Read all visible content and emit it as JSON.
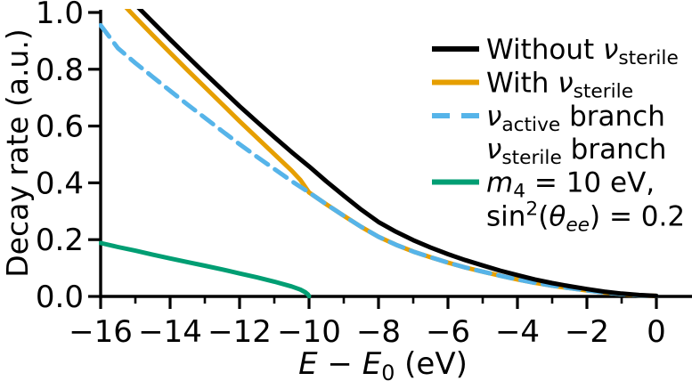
{
  "figure": {
    "background": "#ffffff",
    "text_color": "#000000"
  },
  "axis": {
    "ylabel": "Decay rate (a.u.)",
    "xlabel_parts": [
      {
        "t": "i",
        "v": "E"
      },
      {
        "t": "r",
        "v": " − "
      },
      {
        "t": "i",
        "v": "E"
      },
      {
        "t": "sub",
        "v": "0"
      },
      {
        "t": "r",
        "v": " (eV)"
      }
    ],
    "xtick_labels": [
      "−16",
      "−14",
      "−12",
      "−10",
      "−8",
      "−6",
      "−4",
      "−2",
      "0"
    ],
    "ytick_labels": [
      "0.0",
      "0.2",
      "0.4",
      "0.6",
      "0.8",
      "1.0"
    ]
  },
  "legend": {
    "items": [
      {
        "swatch": "solid",
        "color": "#000000",
        "parts": [
          {
            "t": "r",
            "v": "Without "
          },
          {
            "t": "i",
            "v": "ν"
          },
          {
            "t": "sub",
            "v": "sterile"
          }
        ]
      },
      {
        "swatch": "solid",
        "color": "#E69F00",
        "parts": [
          {
            "t": "r",
            "v": "With "
          },
          {
            "t": "i",
            "v": "ν"
          },
          {
            "t": "sub",
            "v": "sterile"
          }
        ]
      },
      {
        "swatch": "dashed",
        "color": "#56B4E9",
        "parts": [
          {
            "t": "i",
            "v": "ν"
          },
          {
            "t": "sub",
            "v": "active"
          },
          {
            "t": "r",
            "v": " branch"
          }
        ]
      },
      {
        "swatch": "none",
        "color": "",
        "parts": [
          {
            "t": "i",
            "v": "ν"
          },
          {
            "t": "sub",
            "v": "sterile"
          },
          {
            "t": "r",
            "v": " branch"
          }
        ]
      },
      {
        "swatch": "solid",
        "color": "#009E73",
        "parts": [
          {
            "t": "i",
            "v": "m"
          },
          {
            "t": "sub",
            "v": "4"
          },
          {
            "t": "r",
            "v": " = 10 eV,"
          }
        ]
      },
      {
        "swatch": "none",
        "color": "",
        "parts": [
          {
            "t": "r",
            "v": "sin"
          },
          {
            "t": "sup",
            "v": "2"
          },
          {
            "t": "r",
            "v": "("
          },
          {
            "t": "i",
            "v": "θ"
          },
          {
            "t": "isub",
            "v": "ee"
          },
          {
            "t": "r",
            "v": ") = 0.2"
          }
        ]
      }
    ]
  },
  "chart_data": {
    "type": "line",
    "title": "",
    "xlabel": "E − E0 (eV)",
    "ylabel": "Decay rate (a.u.)",
    "xlim": [
      -16,
      1.0
    ],
    "ylim": [
      0,
      1.0
    ],
    "grid": false,
    "legend_position": "upper right",
    "xticks_major": [
      -16,
      -14,
      -12,
      -10,
      -8,
      -6,
      -4,
      -2,
      0
    ],
    "xticks_minor": [
      -15,
      -13,
      -11,
      -9,
      -7,
      -5,
      -3,
      -1
    ],
    "yticks": [
      0.0,
      0.2,
      0.4,
      0.6,
      0.8,
      1.0
    ],
    "series": [
      {
        "name": "Without ν_sterile",
        "color": "#000000",
        "style": "solid",
        "x": [
          -16,
          -15.5,
          -15,
          -14.5,
          -14,
          -13.5,
          -13,
          -12.5,
          -12,
          -11.5,
          -11,
          -10.5,
          -10,
          -9.5,
          -9,
          -8.5,
          -8,
          -7.5,
          -7,
          -6.5,
          -6,
          -5.5,
          -5,
          -4.5,
          -4,
          -3.5,
          -3,
          -2.5,
          -2,
          -1.5,
          -1,
          -0.5,
          0
        ],
        "y": [
          1.194,
          1.092,
          1.028,
          0.966,
          0.905,
          0.845,
          0.786,
          0.728,
          0.67,
          0.615,
          0.561,
          0.508,
          0.458,
          0.405,
          0.355,
          0.306,
          0.262,
          0.228,
          0.198,
          0.172,
          0.149,
          0.128,
          0.109,
          0.091,
          0.075,
          0.06,
          0.047,
          0.036,
          0.026,
          0.017,
          0.01,
          0.005,
          0.002
        ]
      },
      {
        "name": "With ν_sterile",
        "color": "#E69F00",
        "style": "solid",
        "x": [
          -16,
          -15.5,
          -15,
          -14.5,
          -14,
          -13.5,
          -13,
          -12.5,
          -12,
          -11.5,
          -11,
          -10.5,
          -10.25,
          -10,
          -9.5,
          -9,
          -8.5,
          -8,
          -7.5,
          -7,
          -6.5,
          -6,
          -5.5,
          -5,
          -4.5,
          -4,
          -3.5,
          -3,
          -2.5,
          -2,
          -1.5,
          -1,
          -0.5,
          0
        ],
        "y": [
          1.143,
          1.048,
          0.983,
          0.92,
          0.858,
          0.797,
          0.737,
          0.677,
          0.617,
          0.559,
          0.501,
          0.443,
          0.41,
          0.366,
          0.324,
          0.284,
          0.245,
          0.21,
          0.182,
          0.158,
          0.138,
          0.119,
          0.102,
          0.087,
          0.073,
          0.06,
          0.048,
          0.038,
          0.029,
          0.021,
          0.014,
          0.008,
          0.004,
          0.002
        ]
      },
      {
        "name": "ν_active branch",
        "color": "#56B4E9",
        "style": "dashed",
        "x": [
          -16,
          -15.5,
          -15,
          -14.5,
          -14,
          -13.5,
          -13,
          -12.5,
          -12,
          -11.5,
          -11,
          -10.5,
          -10,
          -9.5,
          -9,
          -8.5,
          -8,
          -7.5,
          -7,
          -6.5,
          -6,
          -5.5,
          -5,
          -4.5,
          -4,
          -3.5,
          -3,
          -2.5,
          -2,
          -1.5,
          -1,
          -0.5,
          0
        ],
        "y": [
          0.955,
          0.874,
          0.822,
          0.773,
          0.724,
          0.676,
          0.629,
          0.582,
          0.536,
          0.492,
          0.449,
          0.406,
          0.366,
          0.324,
          0.284,
          0.245,
          0.21,
          0.182,
          0.158,
          0.138,
          0.119,
          0.102,
          0.087,
          0.073,
          0.06,
          0.048,
          0.038,
          0.029,
          0.021,
          0.014,
          0.008,
          0.004,
          0.002
        ]
      },
      {
        "name": "ν_sterile branch (m4 = 10 eV, sin²(θ_ee) = 0.2)",
        "color": "#009E73",
        "style": "solid",
        "x": [
          -16,
          -15.5,
          -15,
          -14.5,
          -14,
          -13.5,
          -13,
          -12.5,
          -12,
          -11.5,
          -11,
          -10.5,
          -10.25,
          -10.1,
          -10.03,
          -10
        ],
        "y": [
          0.188,
          0.174,
          0.161,
          0.147,
          0.134,
          0.121,
          0.108,
          0.095,
          0.081,
          0.067,
          0.052,
          0.035,
          0.024,
          0.014,
          0.007,
          0.001
        ]
      }
    ]
  }
}
